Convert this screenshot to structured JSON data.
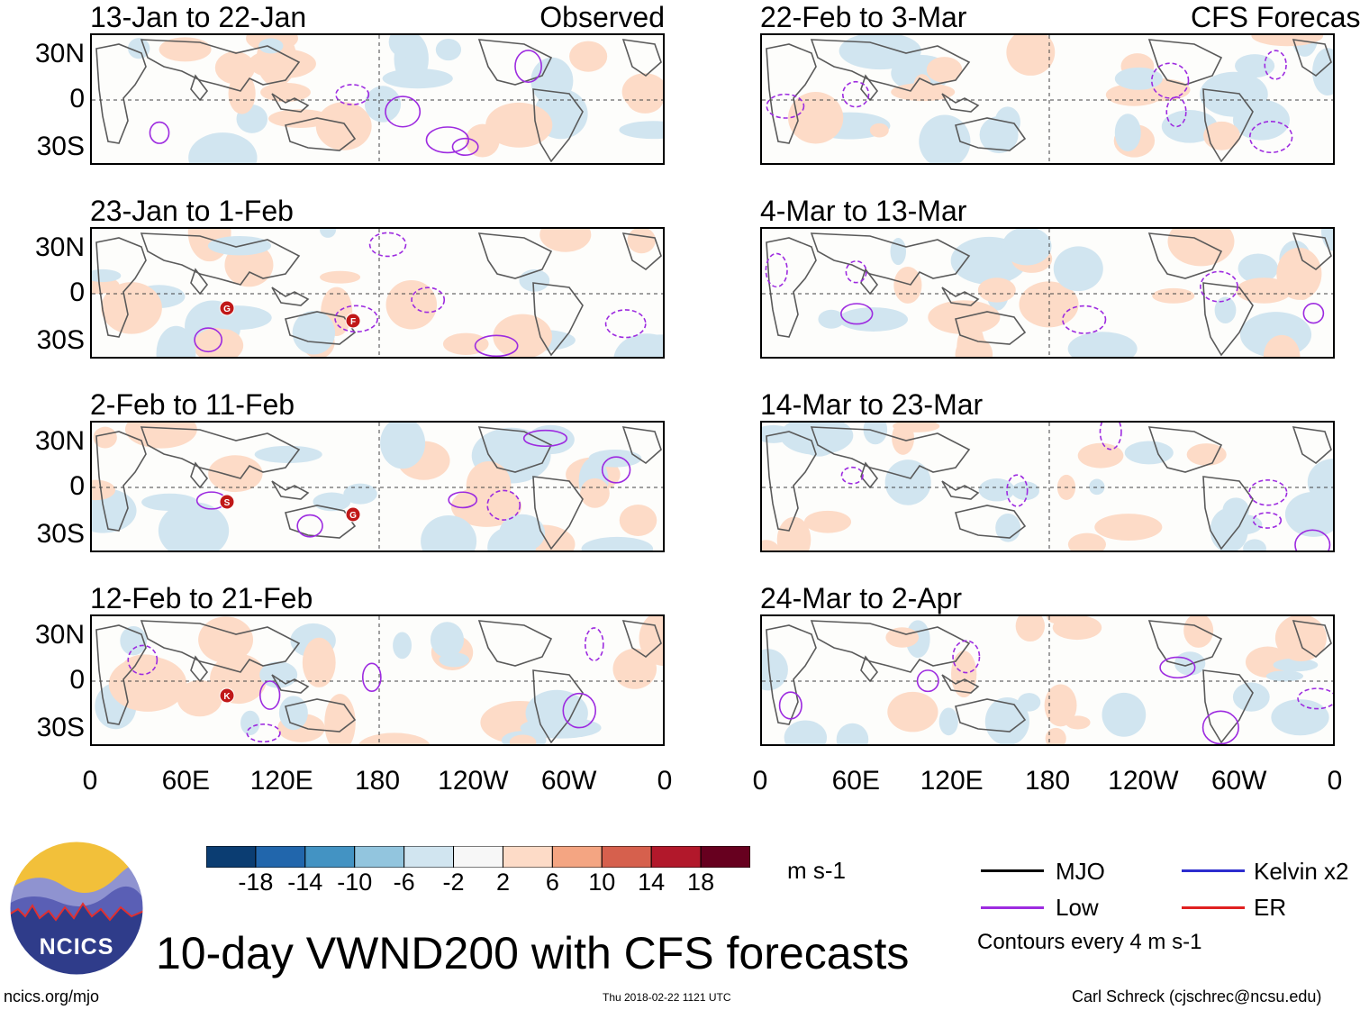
{
  "chart_data": {
    "type": "heatmap",
    "title": "10-day VWND200 with CFS forecasts",
    "variable": "200-hPa meridional wind anomaly",
    "units": "m s-1",
    "columns": [
      {
        "label": "Observed",
        "panels": [
          {
            "period": "13-Jan to 22-Jan"
          },
          {
            "period": "23-Jan to 1-Feb",
            "storm_markers": [
              "G",
              "F"
            ]
          },
          {
            "period": "2-Feb to 11-Feb",
            "storm_markers": [
              "S",
              "G"
            ]
          },
          {
            "period": "12-Feb to 21-Feb",
            "storm_markers": [
              "K"
            ]
          }
        ]
      },
      {
        "label": "CFS Forecast",
        "panels": [
          {
            "period": "22-Feb to 3-Mar"
          },
          {
            "period": "4-Mar to 13-Mar"
          },
          {
            "period": "14-Mar to 23-Mar"
          },
          {
            "period": "24-Mar to 2-Apr"
          }
        ]
      }
    ],
    "y_ticks": [
      "30N",
      "0",
      "30S"
    ],
    "x_ticks": [
      "0",
      "60E",
      "120E",
      "180",
      "120W",
      "60W",
      "0"
    ],
    "colorbar": {
      "ticks": [
        "-18",
        "-14",
        "-10",
        "-6",
        "-2",
        "2",
        "6",
        "10",
        "14",
        "18"
      ],
      "units": "m s-1",
      "colors": [
        "#0b3d72",
        "#2166ac",
        "#4393c3",
        "#92c5de",
        "#d1e5f0",
        "#f7f7f7",
        "#fddbc7",
        "#f4a582",
        "#d6604d",
        "#b2182b",
        "#67001f"
      ]
    },
    "legend": {
      "entries": [
        {
          "name": "MJO",
          "color": "#000000"
        },
        {
          "name": "Kelvin x2",
          "color": "#2d2dcf"
        },
        {
          "name": "Low",
          "color": "#9d2be0"
        },
        {
          "name": "ER",
          "color": "#e02020"
        }
      ],
      "contour_note": "Contours every 4 m s-1"
    }
  },
  "footer": {
    "logo_text": "NCICS",
    "url": "ncics.org/mjo",
    "timestamp": "Thu 2018-02-22 1121 UTC",
    "credit": "Carl Schreck (cjschrec@ncsu.edu)"
  }
}
